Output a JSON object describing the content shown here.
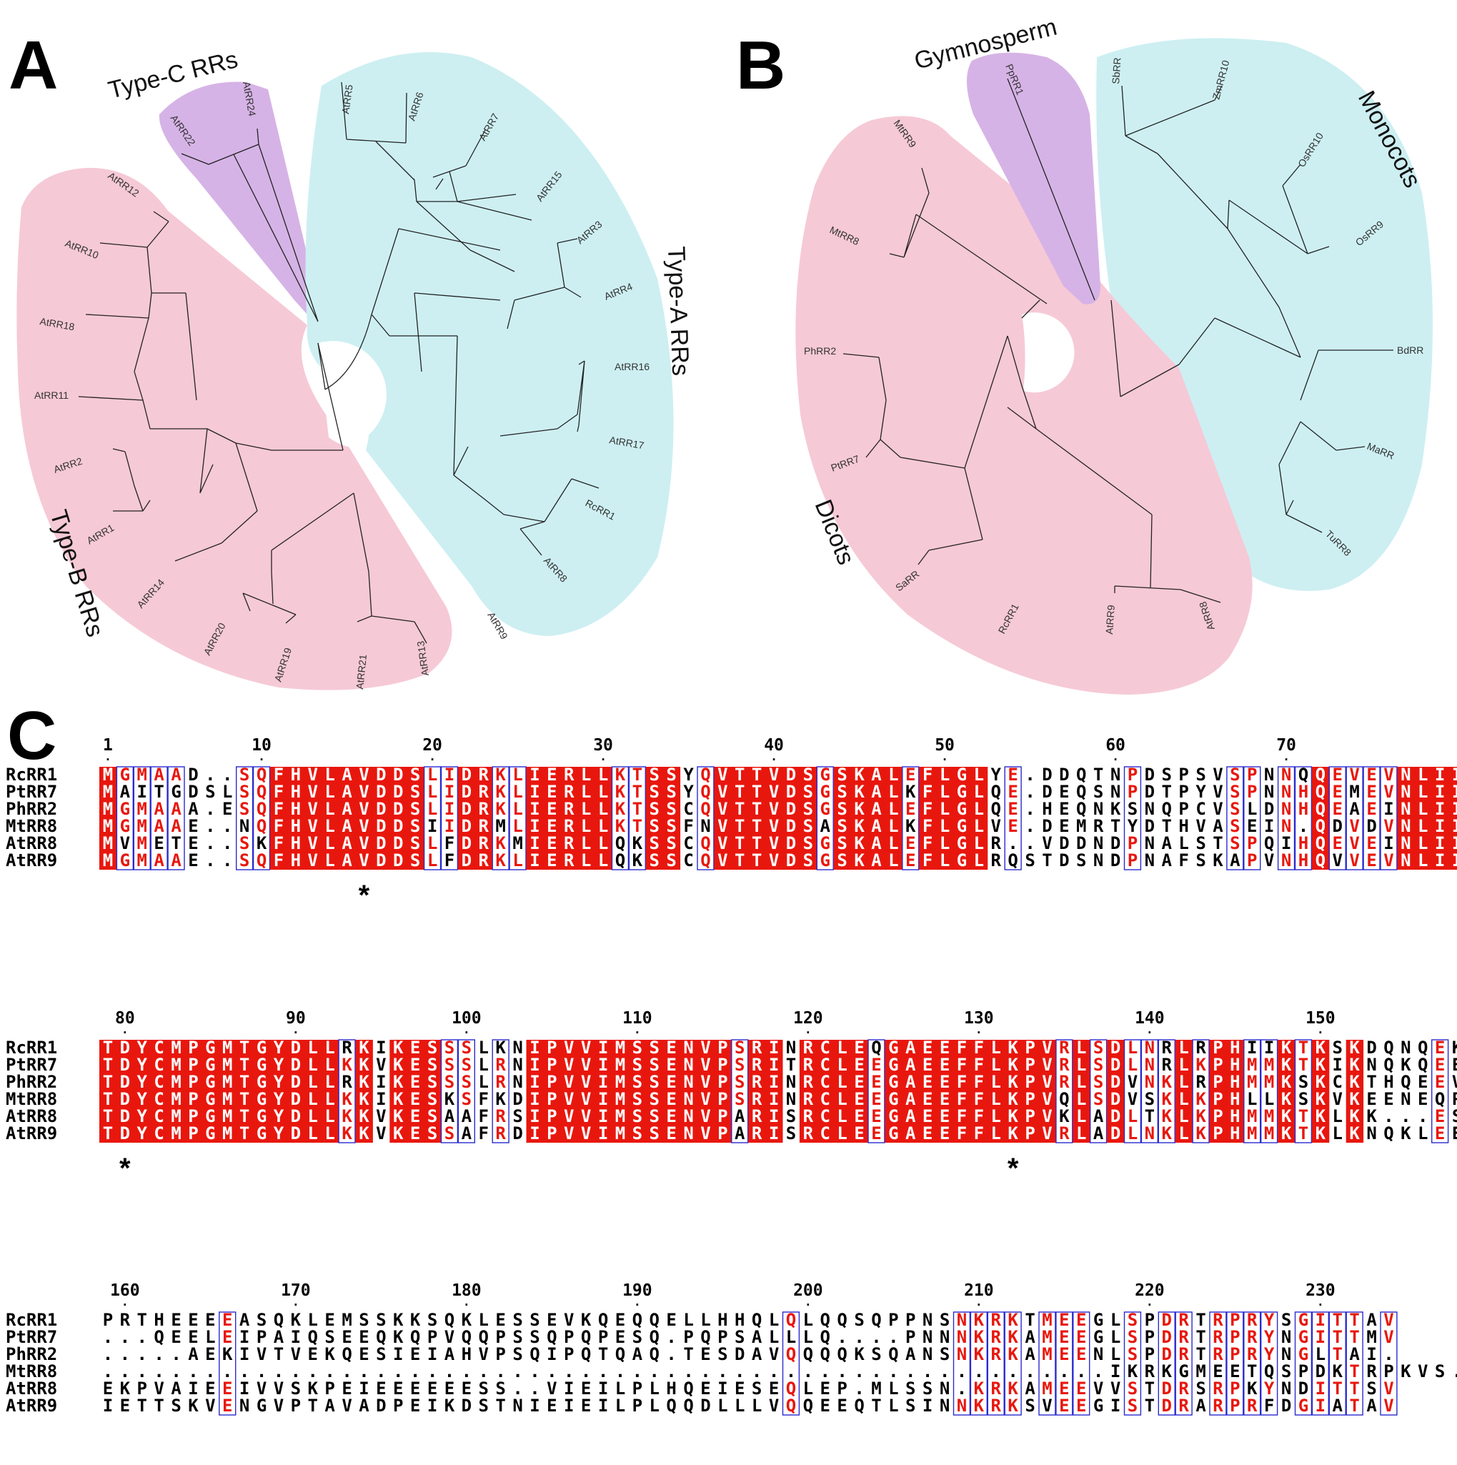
{
  "panels": {
    "a": {
      "letter": "A",
      "groups": [
        {
          "label": "Type-C RRs",
          "color": "#d6b3e6",
          "leaves": [
            "AtRR22",
            "AtRR24"
          ]
        },
        {
          "label": "Type-A RRs",
          "color": "#cdeff2",
          "leaves": [
            "AtRR5",
            "AtRR6",
            "AtRR7",
            "AtRR15",
            "AtRR3",
            "AtRR4",
            "AtRR16",
            "AtRR17",
            "RcRR1",
            "AtRR8",
            "AtRR9"
          ]
        },
        {
          "label": "Type-B RRs",
          "color": "#f6c9d6",
          "leaves": [
            "AtRR12",
            "AtRR10",
            "AtRR18",
            "AtRR11",
            "AtRR2",
            "AtRR1",
            "AtRR14",
            "AtRR20",
            "AtRR19",
            "AtRR21",
            "AtRR13"
          ]
        }
      ]
    },
    "b": {
      "letter": "B",
      "groups": [
        {
          "label": "Gymnosperm",
          "color": "#d6b3e6",
          "leaves": [
            "PpRR1"
          ]
        },
        {
          "label": "Monocots",
          "color": "#cdeff2",
          "leaves": [
            "SbRR",
            "ZmRR10",
            "OsRR10",
            "OsRR9",
            "BdRR",
            "MaRR",
            "TuRR8"
          ]
        },
        {
          "label": "Dicots",
          "color": "#f6c9d6",
          "leaves": [
            "MtRR9",
            "MtRR8",
            "PhRR2",
            "PtRR7",
            "SaRR",
            "RcRR1",
            "AtRR9",
            "AtRR8"
          ]
        }
      ]
    },
    "c": {
      "letter": "C",
      "names": [
        "RcRR1",
        "PtRR7",
        "PhRR2",
        "MtRR8",
        "AtRR8",
        "AtRR9"
      ],
      "blocks": [
        {
          "start": 1,
          "seqs": [
            "MGMAAD..SQFHVLAVDDSLIDRKLIERLLKTSSYQVTTVDSGSKALEFLGLYE.DDQTNPDSPSVSPNNQQEVEVNLII",
            "MAITGDSLSQFHVLAVDDSLIDRKLIERLLKTSSYQVTTVDSGSKALKFLGLQE.DEQSNPDTPYVSPNNHQEMEVNLII",
            "MGMAAA.ESQFHVLAVDDSLIDRKLIERLLKTSSCQVTTVDSGSKALEFLGLQE.HEQNKSNQPCVSLDNHQEAEINLII",
            "MGMAAE..NQFHVLAVDDSIIDRMLIERLLKTSSFNVTTVDSASKALKFLGLVE.DEMRTYDTHVASEIN.QDVDVNLII",
            "MVMETE..SKFHVLAVDDSLFDRKMIERLLQKSSCQVTTVDSGSKALEFLGLR..VDDNDPNALSTSPQIHQEVEINLII",
            "MGMAAE..SQFHVLAVDDSLFDRKLIERLLQKSSCQVTTVDSGSKALEFLGLRQSTDSNDPNAFSKAPVNHQVVEVNLII"
          ],
          "numbers": [
            "1",
            "10",
            "20",
            "30",
            "40",
            "50",
            "60",
            "70"
          ],
          "stars": [
            "*"
          ]
        },
        {
          "start": 79,
          "seqs": [
            "TDYCMPGMTGYDLLRKIKESSSLKNIPVVIMSSENVPSRINRCLEQGAEEFFLKPVRLSDLNRLRPHIIKTKSKDQNQEK",
            "TDYCMPGMTGYDLLKKVKESSSLRNIPVVIMSSENVPSRITRCLEEGAEEFFLKPVRLSDLNRLKPHMMKTKIKNQKQEE",
            "TDYCMPGMTGYDLLRKIKESSSLRNIPVVIMSSENVPSRINRCLEEGAEEFFLKPVRLSDVNKLRPHMMKSKCKTHQEEV",
            "TDYCMPGMTGYDLLKKIKESKSFKDIPVVIMSSENVPSRINRCLEEGAEEFFLKPVQLSDVSKLKPHLLKSKVKEENEQP",
            "TDYCMPGMTGYDLLKKVKESAAFRSIPVVIMSSENVPARISRCLEEGAEEFFLKPVKLADLTKLKPHMMKTKLKK...ES",
            "TDYCMPGMTGYDLLKKVKESSAFRDIPVVIMSSENVPARISRCLEEGAEEFFLKPVRLADLNKLKPHMMKTKLKNQKLEE"
          ],
          "numbers": [
            "80",
            "90",
            "100",
            "110",
            "120",
            "130",
            "140",
            "150"
          ],
          "stars": [
            "*",
            "*"
          ]
        },
        {
          "start": 159,
          "seqs": [
            "PRTHEEEEASQKLEMSSKKSQKLESSEVKQEQQELLHHQLQLQQSQPPNSNKRKTMEEGLSPDRTRPRYSGITTAV",
            "...QEELEIPAIQSEEQKQPVQQPSSQPQPESQ.PQPSALLLQ....PNNNKRKAMEEGLSPDRTRPRYNGITTMV",
            ".....AEKIVTVEKQESIEIAHVPSQIPQTQAQ.TESDAVQQQQKSQANSNKRKAMEENLSPDRTRPRYNGLTAI.",
            "...........................................................IKRKGMEETQSPDKTRPKVS.I....",
            "EKPVAIEEIVVSKPEIEEEEEESS..VIEILPLHQEIESEQLEP.MLSSN.KRKAMEEVVSTDRSRPKYNDITTSV",
            "IETTSKVENGVPTAVADPEIKDSTNIEIEILPLQQDLLLVQQEEQTLSINNKRKSVEEGISTDRARPRFDGIATAV"
          ],
          "numbers": [
            "160",
            "170",
            "180",
            "190",
            "200",
            "210",
            "220",
            "230"
          ],
          "stars": []
        }
      ]
    }
  }
}
